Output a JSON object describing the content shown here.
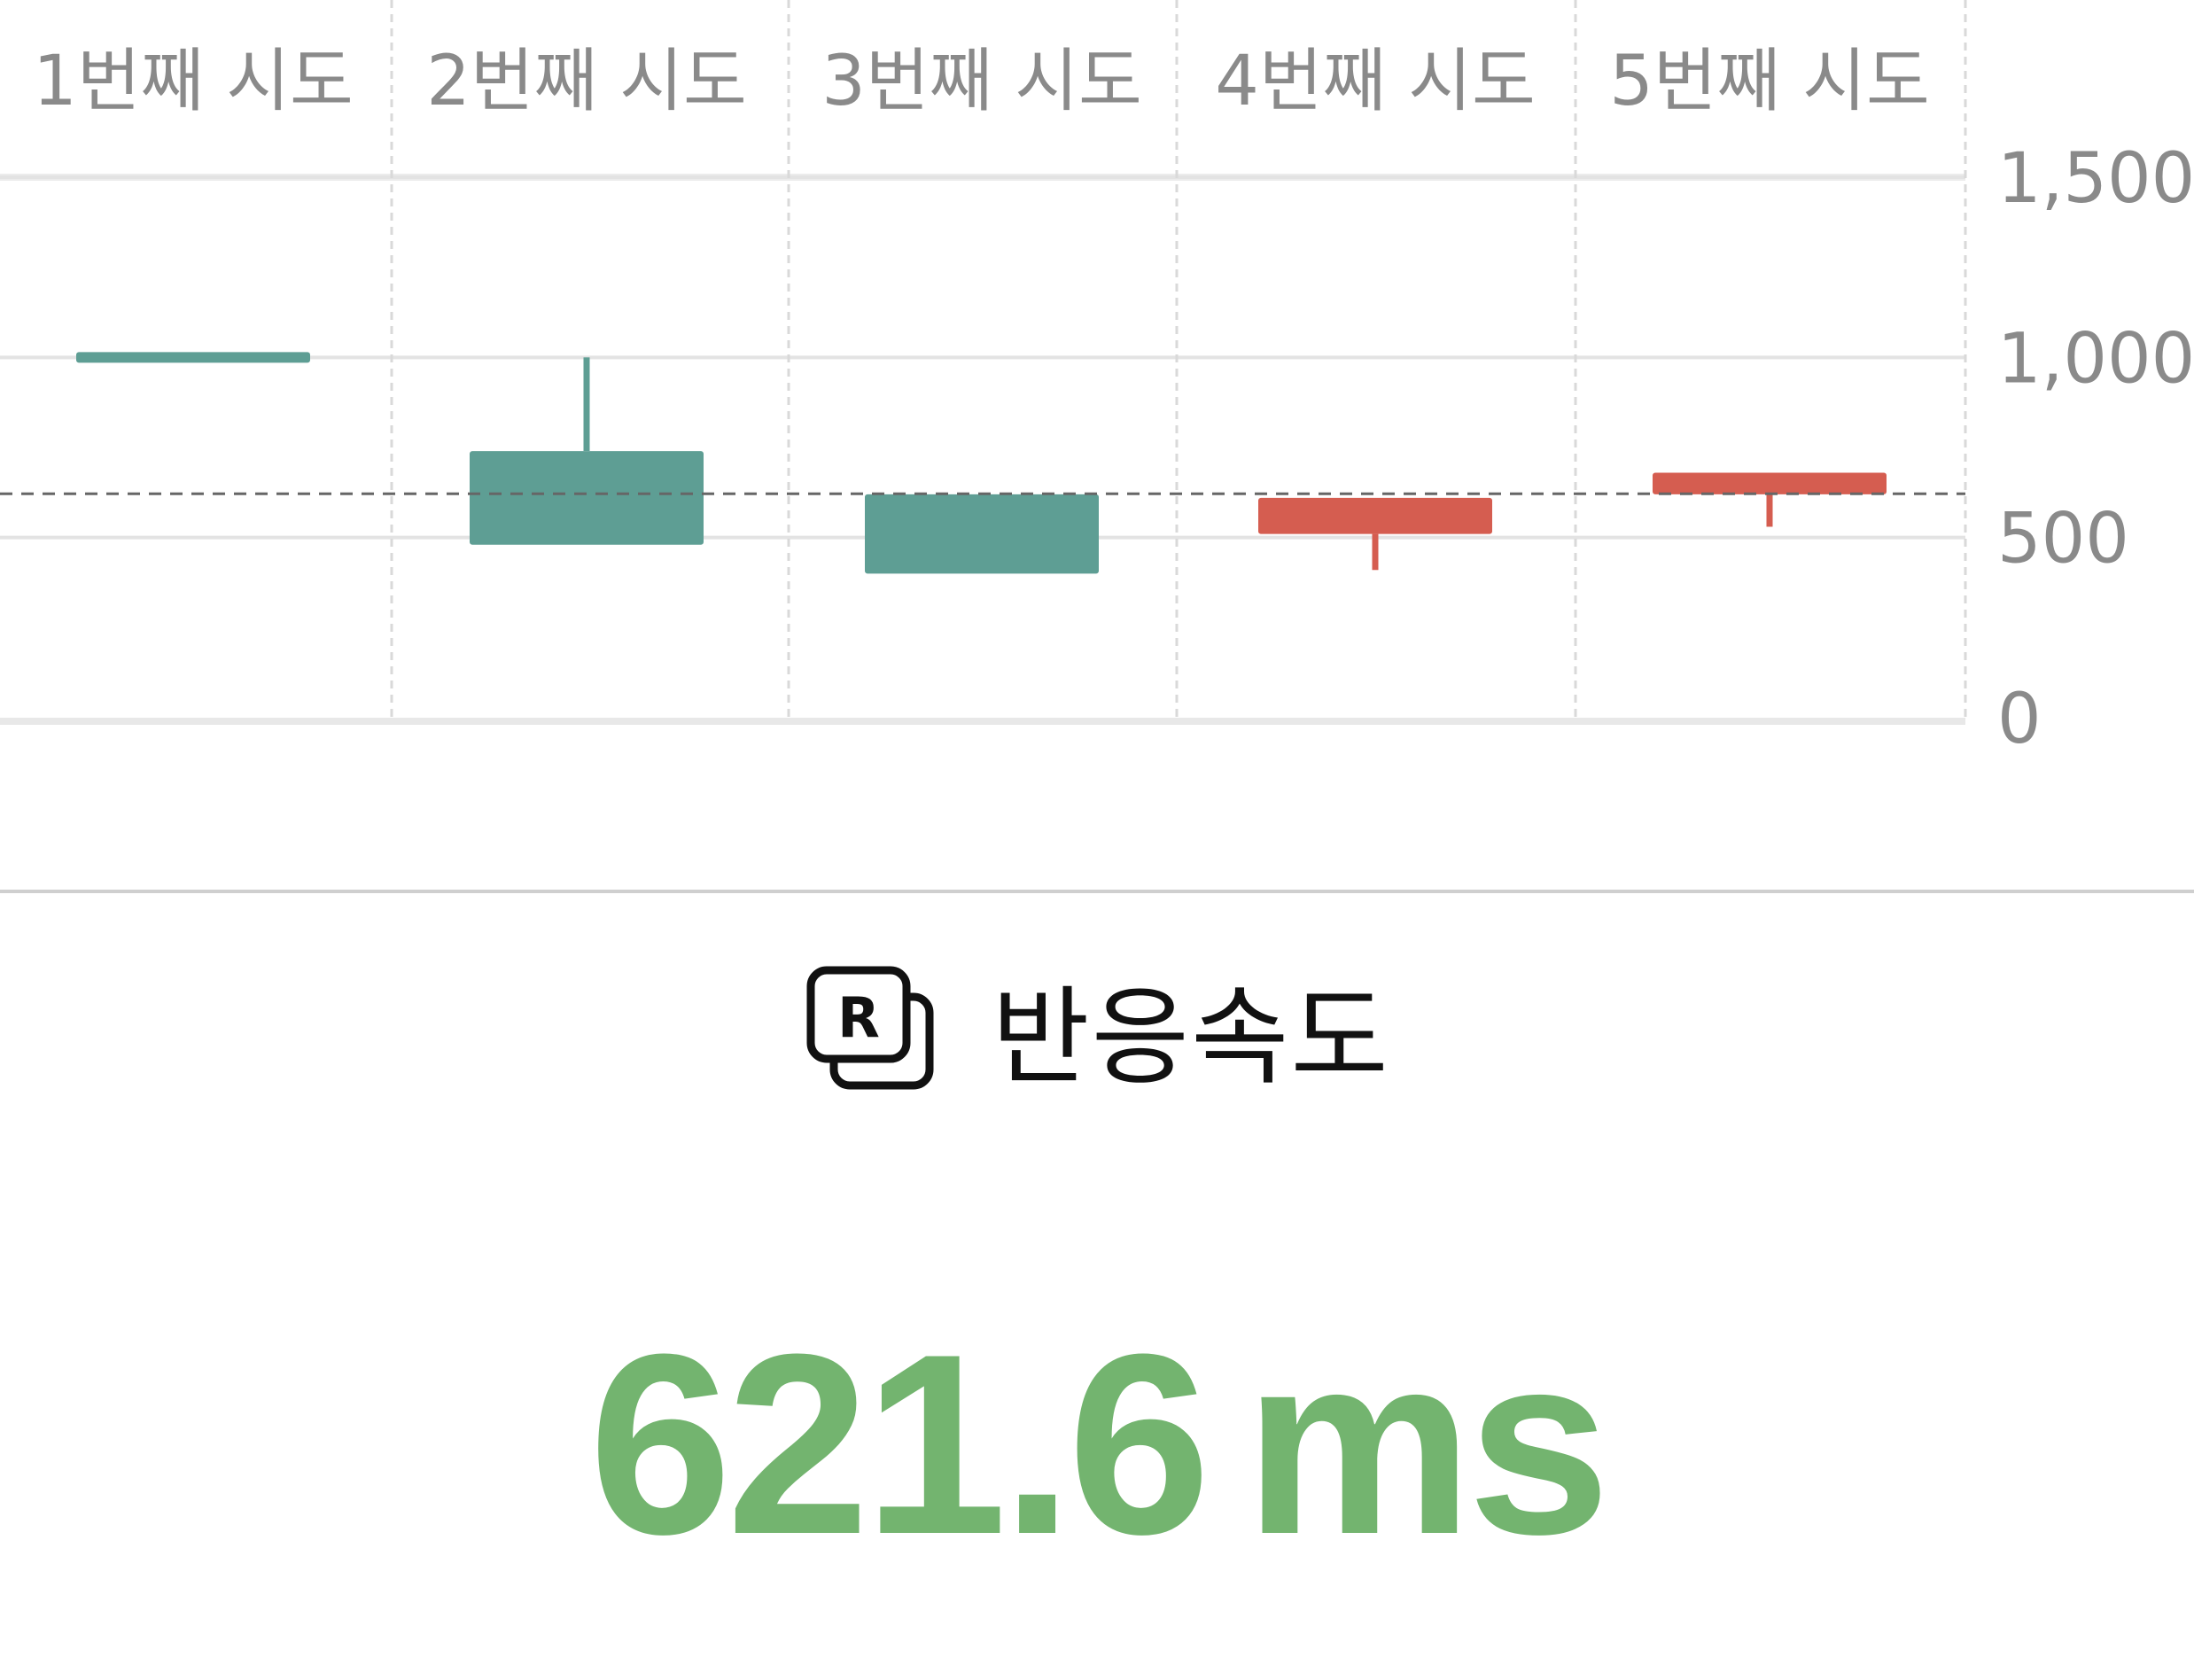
{
  "chart_data": {
    "type": "candlestick",
    "title": "",
    "categories": [
      "1번째 시도",
      "2번째 시도",
      "3번째 시도",
      "4번째 시도",
      "5번째 시도"
    ],
    "candles": [
      {
        "open": 1000,
        "close": 1000,
        "high": 1000,
        "low": 1000,
        "direction": "down"
      },
      {
        "open": 740,
        "close": 480,
        "high": 1000,
        "low": 480,
        "direction": "down"
      },
      {
        "open": 620,
        "close": 400,
        "high": 620,
        "low": 400,
        "direction": "down"
      },
      {
        "open": 510,
        "close": 610,
        "high": 610,
        "low": 410,
        "direction": "up"
      },
      {
        "open": 620,
        "close": 680,
        "high": 680,
        "low": 530,
        "direction": "up"
      }
    ],
    "reference_line": 621.6,
    "y_ticks": [
      "0",
      "500",
      "1,000",
      "1,500"
    ],
    "y_tick_values": [
      0,
      500,
      1000,
      1500
    ],
    "ylim": [
      0,
      1500
    ],
    "y_axis_position": "right",
    "x_labels_position": "top",
    "grid": true,
    "colors": {
      "down": "#5e9e94",
      "up": "#d55d50",
      "grid": "#e3e3e3",
      "reference": "#666666"
    }
  },
  "metric": {
    "icon": "reaction-r-icon",
    "title": "반응속도",
    "value": "621.6",
    "unit": "ms",
    "color": "#73b46f"
  }
}
